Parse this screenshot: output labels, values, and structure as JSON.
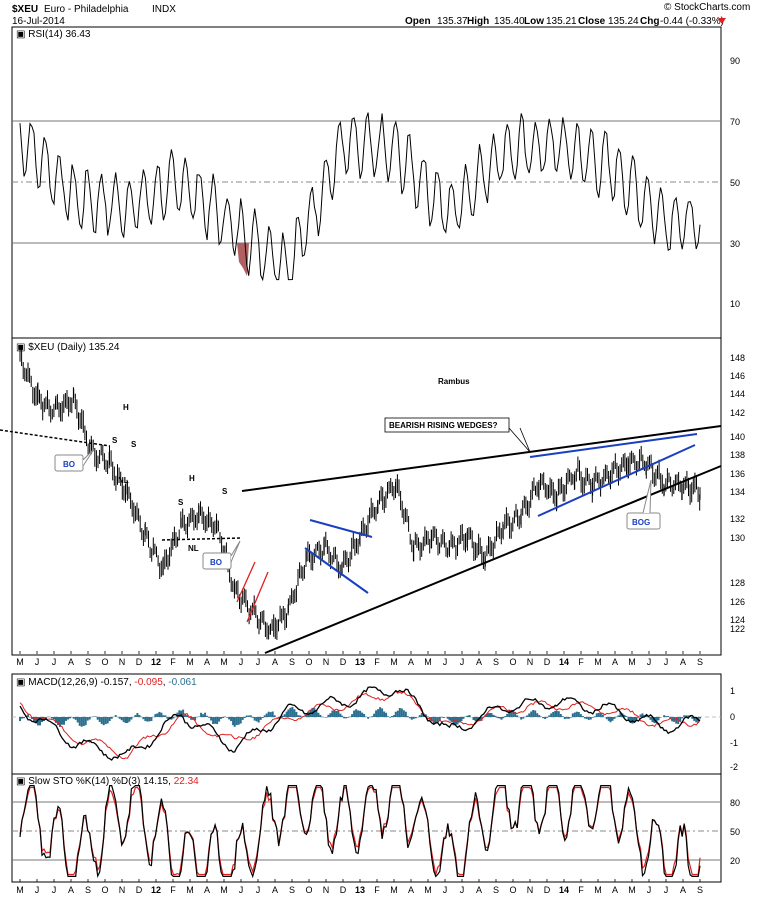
{
  "header": {
    "symbol": "$XEU",
    "name": "Euro - Philadelphia",
    "exchange": "INDX",
    "date": "16-Jul-2014",
    "watermark": "© StockCharts.com",
    "open_label": "Open",
    "open": "135.37",
    "high_label": "High",
    "high": "135.40",
    "low_label": "Low",
    "low": "135.21",
    "close_label": "Close",
    "close": "135.24",
    "chg_label": "Chg",
    "chg": "-0.44 (-0.33%)"
  },
  "panels": {
    "rsi": {
      "label": "RSI(14) 36.43",
      "ticks": [
        "90",
        "70",
        "50",
        "30",
        "10"
      ]
    },
    "price": {
      "label": "$XEU (Daily) 135.24",
      "ticks": [
        "148",
        "146",
        "144",
        "142",
        "140",
        "138",
        "136",
        "134",
        "132",
        "130",
        "128",
        "126",
        "124",
        "122"
      ]
    },
    "macd": {
      "label_prefix": "MACD(12,26,9)",
      "v1": "-0.157",
      "v2": "-0.095",
      "v3": "-0.061",
      "ticks": [
        "1",
        "0",
        "-1",
        "-2"
      ]
    },
    "sto": {
      "label_prefix": "Slow STO %K(14) %D(3)",
      "v1": "14.15",
      "v2": "22.34",
      "ticks": [
        "80",
        "50",
        "20"
      ]
    }
  },
  "x_axis": [
    "M",
    "J",
    "J",
    "A",
    "S",
    "O",
    "N",
    "D",
    "12",
    "F",
    "M",
    "A",
    "M",
    "J",
    "J",
    "A",
    "S",
    "O",
    "N",
    "D",
    "13",
    "F",
    "M",
    "A",
    "M",
    "J",
    "J",
    "A",
    "S",
    "O",
    "N",
    "D",
    "14",
    "F",
    "M",
    "A",
    "M",
    "J",
    "J",
    "A",
    "S"
  ],
  "annotations": {
    "author": "Rambus",
    "wedge_callout": "BEARISH RISING WEDGES?",
    "bo1": "BO",
    "bo2": "BO",
    "bog": "BOG",
    "h1": "H",
    "s1a": "S",
    "s1b": "S",
    "nl1": "NL",
    "h2": "H",
    "s2a": "S",
    "s2b": "S",
    "nl2": "NL"
  },
  "colors": {
    "price": "#000000",
    "trendline": "#000000",
    "wedge": "#1a3fbf",
    "red_channel": "#e02020",
    "macd_hist": "#2a6f8f",
    "signal": "#e02020",
    "rsi_oversold_fill": "#b06060",
    "grid": "#999999"
  },
  "chart_data": [
    {
      "type": "line",
      "name": "RSI(14)",
      "title": "RSI(14) 36.43",
      "ylim": [
        0,
        100
      ],
      "reference_lines": [
        30,
        50,
        70
      ],
      "x": [
        "2011-05",
        "2011-08",
        "2011-11",
        "2012-02",
        "2012-05",
        "2012-08",
        "2012-11",
        "2013-02",
        "2013-05",
        "2013-08",
        "2013-11",
        "2014-02",
        "2014-05",
        "2014-07"
      ],
      "values": [
        65,
        45,
        42,
        50,
        35,
        22,
        62,
        60,
        40,
        60,
        62,
        55,
        38,
        36
      ]
    },
    {
      "type": "line",
      "name": "$XEU (Daily)",
      "title": "$XEU (Daily) 135.24",
      "ylim": [
        121,
        149
      ],
      "x": [
        "2011-05",
        "2011-06",
        "2011-07",
        "2011-08",
        "2011-09",
        "2011-10",
        "2011-11",
        "2011-12",
        "2012-01",
        "2012-02",
        "2012-03",
        "2012-04",
        "2012-05",
        "2012-06",
        "2012-07",
        "2012-08",
        "2012-09",
        "2012-10",
        "2012-11",
        "2012-12",
        "2013-01",
        "2013-02",
        "2013-03",
        "2013-04",
        "2013-05",
        "2013-06",
        "2013-07",
        "2013-08",
        "2013-09",
        "2013-10",
        "2013-11",
        "2013-12",
        "2014-01",
        "2014-02",
        "2014-03",
        "2014-04",
        "2014-05",
        "2014-06",
        "2014-07"
      ],
      "values": [
        148,
        144,
        143,
        144,
        139,
        138,
        135,
        131,
        128,
        132,
        133,
        132,
        126,
        124,
        122,
        124,
        129,
        130,
        128,
        131,
        134,
        136,
        130,
        131,
        130,
        131,
        129,
        132,
        133,
        136,
        135,
        137,
        136,
        137,
        138,
        138,
        136,
        136,
        135.24
      ]
    },
    {
      "type": "line",
      "name": "MACD(12,26,9)",
      "title": "MACD(12,26,9) -0.157, -0.095, -0.061",
      "ylim": [
        -2.2,
        1.8
      ],
      "x": [
        "2011-05",
        "2011-08",
        "2011-11",
        "2012-02",
        "2012-05",
        "2012-08",
        "2012-11",
        "2013-02",
        "2013-05",
        "2013-08",
        "2013-11",
        "2014-02",
        "2014-05",
        "2014-07"
      ],
      "series": [
        {
          "name": "MACD",
          "values": [
            0.4,
            -1.0,
            -1.6,
            0.1,
            -1.2,
            0.2,
            0.6,
            1.2,
            -0.6,
            0.4,
            0.6,
            0.3,
            -0.4,
            -0.157
          ]
        },
        {
          "name": "Signal",
          "values": [
            0.5,
            -0.8,
            -1.5,
            0.0,
            -1.0,
            0.0,
            0.5,
            1.0,
            -0.4,
            0.3,
            0.5,
            0.3,
            -0.3,
            -0.095
          ]
        },
        {
          "name": "Histogram",
          "values": [
            -0.1,
            -0.2,
            -0.1,
            0.1,
            -0.2,
            0.2,
            0.1,
            0.2,
            -0.2,
            0.1,
            0.1,
            0.0,
            -0.1,
            -0.061
          ]
        }
      ]
    },
    {
      "type": "line",
      "name": "Slow STO %K(14) %D(3)",
      "title": "Slow STO %K(14) %D(3) 14.15, 22.34",
      "ylim": [
        0,
        100
      ],
      "reference_lines": [
        20,
        50,
        80
      ],
      "x": [
        "2011-05",
        "2011-08",
        "2011-11",
        "2012-02",
        "2012-05",
        "2012-08",
        "2012-11",
        "2013-02",
        "2013-05",
        "2013-08",
        "2013-11",
        "2014-02",
        "2014-05",
        "2014-07"
      ],
      "series": [
        {
          "name": "%K",
          "values": [
            85,
            15,
            80,
            20,
            10,
            90,
            60,
            90,
            15,
            85,
            80,
            85,
            20,
            14.15
          ]
        },
        {
          "name": "%D",
          "values": [
            82,
            20,
            75,
            25,
            15,
            85,
            62,
            88,
            20,
            80,
            78,
            82,
            25,
            22.34
          ]
        }
      ]
    }
  ]
}
